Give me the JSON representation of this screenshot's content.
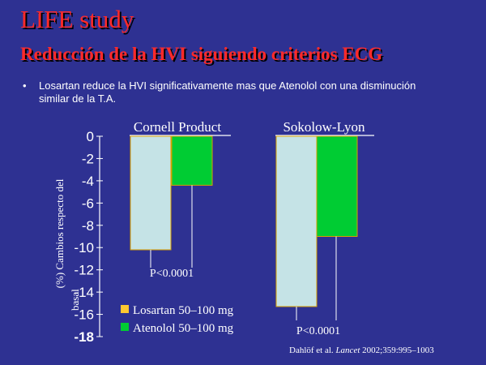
{
  "slide": {
    "title": "LIFE study",
    "subtitle": "Reducción de la HVI siguiendo criterios ECG",
    "bullet": "Losartan reduce la HVI significativamente mas que Atenolol con una disminución similar de la T.A.",
    "footnote_prefix": "Dahlöf et al. ",
    "footnote_journal": "Lancet",
    "footnote_suffix": " 2002;359:995–1003"
  },
  "colors": {
    "background": "#2E3192",
    "title": "#ff2a2a",
    "losartan": "#C5E3E6",
    "atenolol": "#00CC33",
    "bar_edge": "#D9A000"
  },
  "chart_data": {
    "type": "bar",
    "ylabel": "(%) Cambios respecto del basal",
    "ylim": [
      -18,
      0
    ],
    "yticks": [
      "0",
      "-2",
      "-4",
      "-6",
      "-8",
      "-10",
      "-12",
      "-14",
      "-16",
      "-18"
    ],
    "groups": [
      "Cornell Product",
      "Sokolow-Lyon"
    ],
    "series": [
      {
        "name": "Losartan 50–100 mg",
        "values": [
          -10.2,
          -15.3
        ]
      },
      {
        "name": "Atenolol 50–100 mg",
        "values": [
          -4.4,
          -9.0
        ]
      }
    ],
    "annotations": [
      "P<0.0001",
      "P<0.0001"
    ],
    "legend": "bottom-left"
  }
}
